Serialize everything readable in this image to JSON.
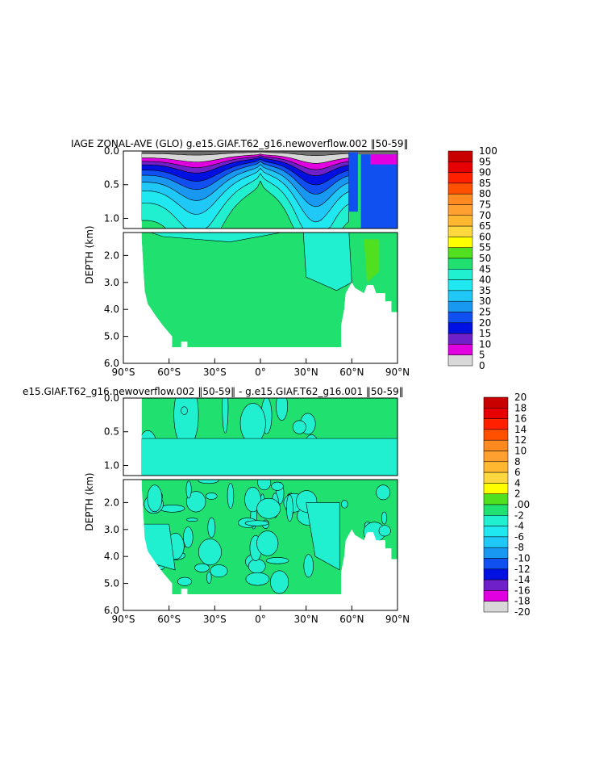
{
  "chart_data": [
    {
      "type": "heatmap",
      "title": "IAGE ZONAL-AVE (GLO) g.e15.GIAF.T62_g16.newoverflow.002 ‖50-59‖",
      "ylabel": "DEPTH (km)",
      "x_ticks": [
        "90°S",
        "60°S",
        "30°S",
        "0°",
        "30°N",
        "60°N",
        "90°N"
      ],
      "x_values": [
        -90,
        -60,
        -30,
        0,
        30,
        60,
        90
      ],
      "y_ticks_upper": [
        "0.0",
        "0.5",
        "1.0"
      ],
      "y_ticks_lower": [
        "2.0",
        "3.0",
        "4.0",
        "5.0",
        "6.0"
      ],
      "ylim": [
        6.0,
        0.0
      ],
      "colorbar": {
        "labels": [
          "100",
          "95",
          "90",
          "85",
          "80",
          "75",
          "70",
          "65",
          "60",
          "55",
          "50",
          "45",
          "40",
          "35",
          "30",
          "25",
          "20",
          "15",
          "10",
          "5",
          "0"
        ],
        "colors": [
          "#c80000",
          "#e60000",
          "#ff2000",
          "#ff5000",
          "#ff8a20",
          "#ffa030",
          "#ffb830",
          "#ffd840",
          "#ffff00",
          "#50e020",
          "#20e070",
          "#20f0d0",
          "#20e8f0",
          "#20c8f8",
          "#1898f0",
          "#1050f0",
          "#0010e0",
          "#7020c8",
          "#e000e0",
          "#d8d8d8",
          "#6e6e6e"
        ]
      },
      "values_note": ""
    },
    {
      "type": "heatmap",
      "title": "e15.GIAF.T62_g16.newoverflow.002 ‖50-59‖ - g.e15.GIAF.T62_g16.001 ‖50-59‖",
      "ylabel": "DEPTH (km)",
      "x_ticks": [
        "90°S",
        "60°S",
        "30°S",
        "0°",
        "30°N",
        "60°N",
        "90°N"
      ],
      "x_values": [
        -90,
        -60,
        -30,
        0,
        30,
        60,
        90
      ],
      "y_ticks_upper": [
        "0.0",
        "0.5",
        "1.0"
      ],
      "y_ticks_lower": [
        "2.0",
        "3.0",
        "4.0",
        "5.0",
        "6.0"
      ],
      "ylim": [
        6.0,
        0.0
      ],
      "colorbar": {
        "labels": [
          "20",
          "18",
          "16",
          "14",
          "12",
          "10",
          "8",
          "6",
          "4",
          "2",
          ".00",
          "-2",
          "-4",
          "-6",
          "-8",
          "-10",
          "-12",
          "-14",
          "-16",
          "-18",
          "-20"
        ],
        "colors": [
          "#c80000",
          "#e60000",
          "#ff2000",
          "#ff5000",
          "#ff8a20",
          "#ffa030",
          "#ffb830",
          "#ffd840",
          "#ffff00",
          "#50e020",
          "#20e070",
          "#20f0d0",
          "#20e8f0",
          "#20c8f8",
          "#1898f0",
          "#1050f0",
          "#0010e0",
          "#7020c8",
          "#e000e0",
          "#d8d8d8",
          "#6e6e6e"
        ]
      }
    }
  ]
}
